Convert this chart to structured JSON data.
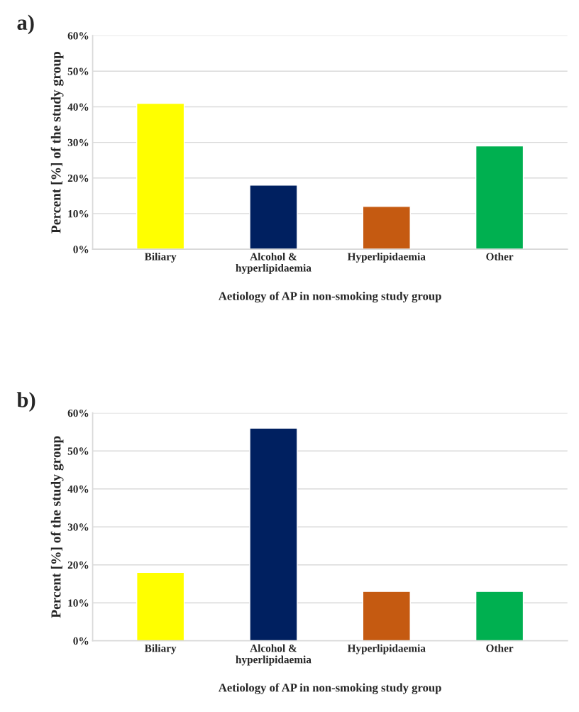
{
  "chart_data": [
    {
      "type": "bar",
      "title": "a)",
      "xlabel": "Aetiology of AP in non-smoking study group",
      "ylabel": "Percent [%] of the study group",
      "categories": [
        "Biliary",
        "Alcohol &\nhyperlipidaemia",
        "Hyperlipidaemia",
        "Other"
      ],
      "values": [
        41,
        18,
        12,
        29
      ],
      "colors": [
        "#ffff00",
        "#002060",
        "#c55a11",
        "#00b050"
      ],
      "ylim": [
        0,
        60
      ],
      "yticks": [
        {
          "value": 0,
          "label": "0%"
        },
        {
          "value": 10,
          "label": "10%"
        },
        {
          "value": 20,
          "label": "20%"
        },
        {
          "value": 30,
          "label": "30%"
        },
        {
          "value": 40,
          "label": "40%"
        },
        {
          "value": 50,
          "label": "50%"
        },
        {
          "value": 60,
          "label": "60%"
        }
      ],
      "grid": "y"
    },
    {
      "type": "bar",
      "title": "b)",
      "xlabel": "Aetiology of AP in non-smoking study group",
      "ylabel": "Percent [%] of the study group",
      "categories": [
        "Biliary",
        "Alcohol &\nhyperlipidaemia",
        "Hyperlipidaemia",
        "Other"
      ],
      "values": [
        18,
        56,
        13,
        13
      ],
      "colors": [
        "#ffff00",
        "#002060",
        "#c55a11",
        "#00b050"
      ],
      "ylim": [
        0,
        60
      ],
      "yticks": [
        {
          "value": 0,
          "label": "0%"
        },
        {
          "value": 10,
          "label": "10%"
        },
        {
          "value": 20,
          "label": "20%"
        },
        {
          "value": 30,
          "label": "30%"
        },
        {
          "value": 40,
          "label": "40%"
        },
        {
          "value": 50,
          "label": "50%"
        },
        {
          "value": 60,
          "label": "60%"
        }
      ],
      "grid": "y"
    }
  ]
}
